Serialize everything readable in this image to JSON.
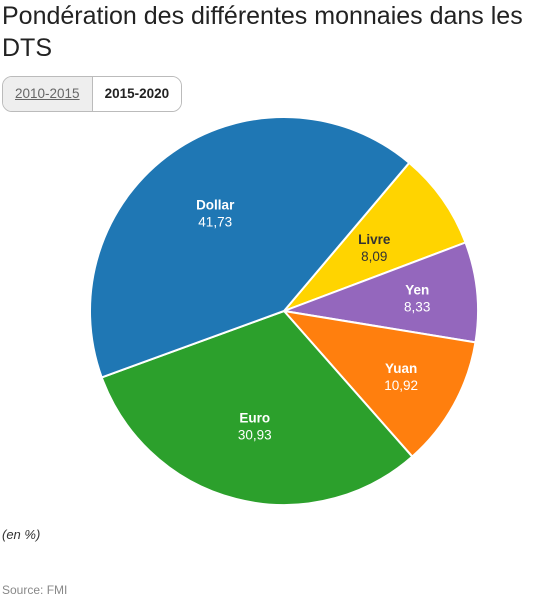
{
  "title": "Pondération des différentes monnaies dans les DTS",
  "tabs": [
    {
      "label": "2010-2015",
      "active": false
    },
    {
      "label": "2015-2020",
      "active": true
    }
  ],
  "note": "(en %)",
  "source": "Source: FMI",
  "chart_data": {
    "type": "pie",
    "labels": [
      "Livre",
      "Yen",
      "Yuan",
      "Euro",
      "Dollar"
    ],
    "values": [
      8.09,
      8.33,
      10.92,
      30.93,
      41.73
    ],
    "value_labels": [
      "8,09",
      "8,33",
      "10,92",
      "30,93",
      "41,73"
    ],
    "colors": [
      "#FFD400",
      "#9467BD",
      "#FF7F0E",
      "#2CA02C",
      "#1F77B4"
    ],
    "label_colors": [
      "#333333",
      "#ffffff",
      "#ffffff",
      "#ffffff",
      "#ffffff"
    ]
  }
}
